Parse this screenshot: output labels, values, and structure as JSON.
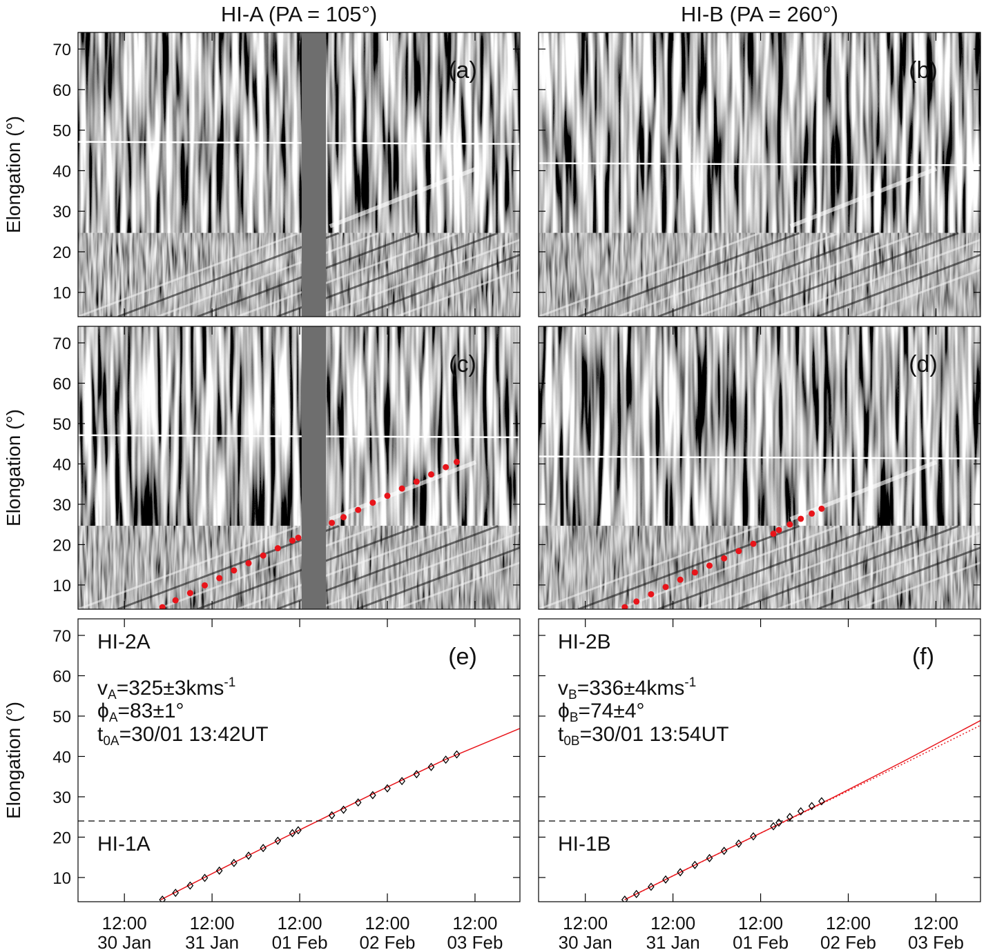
{
  "chart_data": [
    {
      "type": "image",
      "jmap": true,
      "title": "HI-A (PA = 105°)",
      "label": "(a)",
      "ylabel": "Elongation (°)",
      "xlim": [
        -0.7,
        120.3
      ],
      "ylim": [
        4,
        74.1
      ],
      "yticks": [
        10,
        20,
        30,
        40,
        50,
        60,
        70
      ],
      "ytick_labels": true,
      "xticks": [
        12,
        36,
        60,
        84,
        108
      ],
      "xtick_labels": false,
      "series": []
    },
    {
      "type": "image",
      "jmap": true,
      "title": "HI-B (PA = 260°)",
      "label": "(b)",
      "xlim": [
        -0.8,
        120.2
      ],
      "ylim": [
        4,
        74.1
      ],
      "yticks": [
        10,
        20,
        30,
        40,
        50,
        60,
        70
      ],
      "ytick_labels": false,
      "xticks": [
        12,
        36,
        60,
        84,
        108
      ],
      "xtick_labels": false,
      "series": []
    },
    {
      "type": "scatter",
      "jmap": true,
      "label": "(c)",
      "ylabel": "Elongation (°)",
      "xlim": [
        -0.7,
        120.3
      ],
      "ylim": [
        4,
        74.1
      ],
      "yticks": [
        10,
        20,
        30,
        40,
        50,
        60,
        70
      ],
      "ytick_labels": true,
      "xticks": [
        12,
        36,
        60,
        84,
        108
      ],
      "xtick_labels": false,
      "series": [
        {
          "marker": "circle",
          "color": "#e8141a",
          "x": [
            22.4,
            26,
            30,
            34,
            38,
            42,
            46,
            50,
            54,
            58,
            59.6
          ],
          "values": [
            4.5,
            6.2,
            8.0,
            9.9,
            11.7,
            13.6,
            15.4,
            17.3,
            19.1,
            21.0,
            21.7
          ]
        },
        {
          "marker": "circle",
          "color": "#e8141a",
          "x": [
            68.8,
            72,
            76,
            80,
            84,
            88,
            92,
            96,
            100,
            103
          ],
          "values": [
            25.4,
            26.8,
            28.6,
            30.4,
            32.1,
            33.9,
            35.6,
            37.4,
            39.2,
            40.5
          ]
        }
      ]
    },
    {
      "type": "scatter",
      "jmap": true,
      "label": "(d)",
      "xlim": [
        -0.8,
        120.2
      ],
      "ylim": [
        4,
        74.1
      ],
      "yticks": [
        10,
        20,
        30,
        40,
        50,
        60,
        70
      ],
      "ytick_labels": false,
      "xticks": [
        12,
        36,
        60,
        84,
        108
      ],
      "xtick_labels": false,
      "series": [
        {
          "marker": "circle",
          "color": "#e8141a",
          "x": [
            22.8,
            26,
            30,
            34,
            38,
            42,
            46,
            50,
            54,
            58,
            63.5
          ],
          "values": [
            4.5,
            5.9,
            7.7,
            9.5,
            11.3,
            13.1,
            14.8,
            16.6,
            18.4,
            20.2,
            22.7
          ]
        },
        {
          "marker": "circle",
          "color": "#e8141a",
          "x": [
            65,
            68,
            71,
            74,
            76.7
          ],
          "values": [
            23.6,
            25.0,
            26.4,
            27.7,
            28.9
          ]
        }
      ]
    },
    {
      "type": "scatter",
      "jmap": false,
      "label": "(e)",
      "ylabel": "Elongation (°)",
      "xlim": [
        -0.7,
        120.3
      ],
      "ylim": [
        4,
        74.1
      ],
      "yticks": [
        10,
        20,
        30,
        40,
        50,
        60,
        70
      ],
      "ytick_labels": true,
      "xticks": [
        {
          "value": 12,
          "label": [
            "12:00",
            "30 Jan"
          ]
        },
        {
          "value": 36,
          "label": [
            "12:00",
            "31 Jan"
          ]
        },
        {
          "value": 60,
          "label": [
            "12:00",
            "01 Feb"
          ]
        },
        {
          "value": 84,
          "label": [
            "12:00",
            "02 Feb"
          ]
        },
        {
          "value": 108,
          "label": [
            "12:00",
            "03 Feb"
          ]
        }
      ],
      "xtick_labels": true,
      "hline": 24,
      "annotations": [
        [
          {
            "text": "HI-2A"
          }
        ],
        [
          {
            "text": "v"
          },
          {
            "sub": "A"
          },
          {
            "text": "=325±3kms"
          },
          {
            "sup": "-1"
          }
        ],
        [
          {
            "text": "ϕ"
          },
          {
            "sub": "A"
          },
          {
            "text": "=83±1°"
          }
        ],
        [
          {
            "text": "t"
          },
          {
            "sub": "0A"
          },
          {
            "text": "=30/01 13:42UT"
          }
        ],
        [
          {
            "text": "HI-1A"
          }
        ]
      ],
      "series": [
        {
          "marker": "line",
          "color": "#e8141a",
          "x": [
            22,
            40,
            60,
            80,
            100,
            120.2
          ],
          "values": [
            4.5,
            12.8,
            21.8,
            30.7,
            39.3,
            46.9
          ]
        },
        {
          "marker": "diamond",
          "color": "#000000",
          "x": [
            22.4,
            26,
            30,
            34,
            38,
            42,
            46,
            50,
            54,
            58,
            59.6
          ],
          "values": [
            4.5,
            6.2,
            8.0,
            9.9,
            11.7,
            13.6,
            15.4,
            17.3,
            19.1,
            21.0,
            21.7
          ]
        },
        {
          "marker": "diamond",
          "color": "#000000",
          "x": [
            68.8,
            72,
            76,
            80,
            84,
            88,
            92,
            96,
            100,
            103
          ],
          "values": [
            25.4,
            26.8,
            28.6,
            30.4,
            32.1,
            33.9,
            35.6,
            37.4,
            39.2,
            40.5
          ]
        }
      ]
    },
    {
      "type": "scatter",
      "jmap": false,
      "label": "(f)",
      "xlim": [
        -0.8,
        120.2
      ],
      "ylim": [
        4,
        74.1
      ],
      "yticks": [
        10,
        20,
        30,
        40,
        50,
        60,
        70
      ],
      "ytick_labels": false,
      "xticks": [
        {
          "value": 12,
          "label": [
            "12:00",
            "30 Jan"
          ]
        },
        {
          "value": 36,
          "label": [
            "12:00",
            "31 Jan"
          ]
        },
        {
          "value": 60,
          "label": [
            "12:00",
            "01 Feb"
          ]
        },
        {
          "value": 84,
          "label": [
            "12:00",
            "02 Feb"
          ]
        },
        {
          "value": 108,
          "label": [
            "12:00",
            "03 Feb"
          ]
        }
      ],
      "xtick_labels": true,
      "hline": 24,
      "annotations": [
        [
          {
            "text": "HI-2B"
          }
        ],
        [
          {
            "text": "v"
          },
          {
            "sub": "B"
          },
          {
            "text": "=336±4kms"
          },
          {
            "sup": "-1"
          }
        ],
        [
          {
            "text": "ϕ"
          },
          {
            "sub": "B"
          },
          {
            "text": "=74±4°"
          }
        ],
        [
          {
            "text": "t"
          },
          {
            "sub": "0B"
          },
          {
            "text": "=30/01 13:54UT"
          }
        ],
        [
          {
            "text": "HI-1B"
          }
        ]
      ],
      "series": [
        {
          "marker": "line",
          "color": "#e8141a",
          "x": [
            22.8,
            40,
            60,
            80,
            100,
            120.2
          ],
          "values": [
            4.5,
            12.2,
            21.0,
            29.9,
            39.2,
            48.9
          ]
        },
        {
          "marker": "line",
          "dash": "dotted",
          "color": "#e8141a",
          "x": [
            22.8,
            40,
            60,
            80,
            100,
            120.2
          ],
          "values": [
            4.5,
            12.2,
            21.0,
            29.7,
            38.6,
            47.7
          ]
        },
        {
          "marker": "diamond",
          "color": "#000000",
          "x": [
            22.8,
            26,
            30,
            34,
            38,
            42,
            46,
            50,
            54,
            58,
            63.5
          ],
          "values": [
            4.5,
            5.9,
            7.7,
            9.5,
            11.3,
            13.1,
            14.8,
            16.6,
            18.4,
            20.2,
            22.7
          ]
        },
        {
          "marker": "diamond",
          "color": "#000000",
          "x": [
            65,
            68,
            71,
            74,
            76.7
          ],
          "values": [
            23.6,
            25.0,
            26.4,
            27.7,
            28.9
          ]
        }
      ]
    }
  ]
}
